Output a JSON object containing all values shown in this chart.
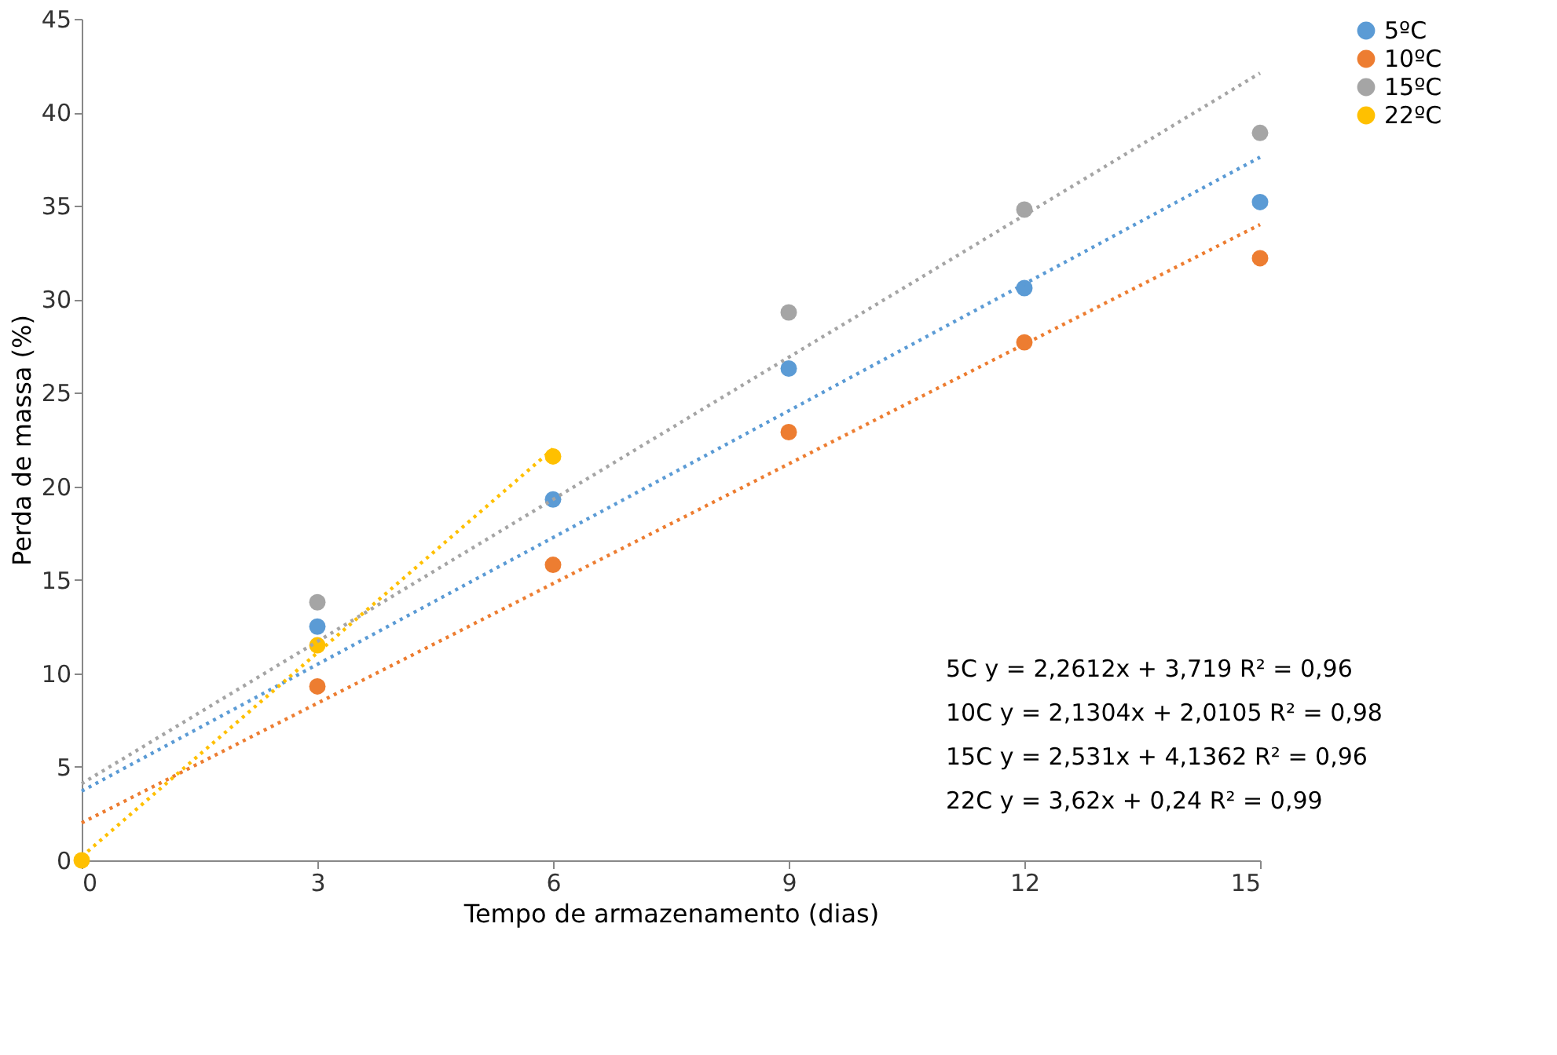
{
  "chart_data": {
    "type": "scatter",
    "xlabel": "Tempo de armazenamento (dias)",
    "ylabel": "Perda de massa (%)",
    "xlim": [
      0,
      15
    ],
    "xticks": [
      0,
      3,
      6,
      9,
      12,
      15
    ],
    "ylim": [
      0,
      45
    ],
    "yticks": [
      0,
      5,
      10,
      15,
      20,
      25,
      30,
      35,
      40,
      45
    ],
    "grid": false,
    "legend": "right",
    "marker": "circle",
    "series": [
      {
        "name": "5ºC",
        "color": "#5b9bd5",
        "x": [
          3,
          6,
          9,
          12,
          15
        ],
        "values": [
          12.5,
          19.3,
          26.3,
          30.6,
          35.2
        ]
      },
      {
        "name": "10ºC",
        "color": "#ed7d31",
        "x": [
          3,
          6,
          9,
          12,
          15
        ],
        "values": [
          9.3,
          15.8,
          22.9,
          27.7,
          32.2
        ]
      },
      {
        "name": "15ºC",
        "color": "#a5a5a5",
        "x": [
          3,
          9,
          12,
          15
        ],
        "values": [
          13.8,
          29.3,
          34.8,
          38.9
        ]
      },
      {
        "name": "22ºC",
        "color": "#ffc000",
        "x": [
          0,
          3,
          6
        ],
        "values": [
          0,
          11.5,
          21.6
        ]
      },
      {
        "type": "line",
        "color": "#5b9bd5",
        "line_style": "dotted",
        "marker": "none",
        "x": [
          0,
          15
        ],
        "values": [
          3.7,
          37.6
        ]
      },
      {
        "type": "line",
        "color": "#ed7d31",
        "line_style": "dotted",
        "marker": "none",
        "x": [
          0,
          15
        ],
        "values": [
          2.0,
          34.0
        ]
      },
      {
        "type": "line",
        "color": "#a5a5a5",
        "line_style": "dotted",
        "marker": "none",
        "x": [
          0,
          15
        ],
        "values": [
          4.1,
          42.1
        ]
      },
      {
        "type": "line",
        "color": "#ffc000",
        "line_style": "dotted",
        "marker": "none",
        "x": [
          0,
          6
        ],
        "values": [
          0.2,
          22.0
        ]
      }
    ],
    "annotations": [
      "5C y = 2,2612x + 3,719 R² = 0,96",
      "10C y = 2,1304x + 2,0105 R² = 0,98",
      "15C y = 2,531x + 4,1362 R² = 0,96",
      " 22C y = 3,62x + 0,24 R² = 0,99"
    ]
  }
}
